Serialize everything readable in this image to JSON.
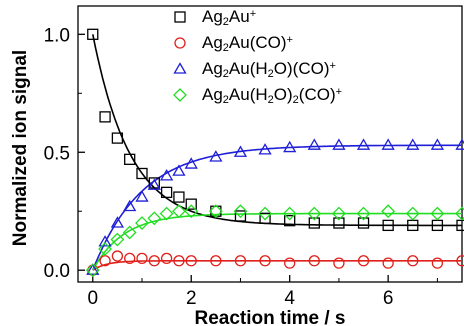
{
  "chart_data": {
    "type": "scatter",
    "xlabel": "Reaction time / s",
    "ylabel": "Normalized ion signal",
    "xlim": [
      -0.3,
      7.5
    ],
    "ylim": [
      -0.05,
      1.12
    ],
    "x_ticks": [
      "0",
      "2",
      "4",
      "6"
    ],
    "y_ticks": [
      "0.0",
      "0.5",
      "1.0"
    ],
    "legend_position": "top-right",
    "grid": false,
    "series": [
      {
        "name": "Ag2Au+",
        "name_parts": [
          [
            "Ag",
            ""
          ],
          [
            "2",
            "sub"
          ],
          [
            "Au",
            ""
          ],
          [
            "+",
            "sup"
          ]
        ],
        "marker": "square",
        "color": "#000000",
        "fit_color": "#000000",
        "fit": {
          "a": 0.81,
          "k": 1.3,
          "c": 0.19
        },
        "x": [
          0,
          0.25,
          0.5,
          0.75,
          1,
          1.25,
          1.5,
          1.75,
          2,
          2.5,
          3,
          3.5,
          4,
          4.5,
          5,
          5.5,
          6,
          6.5,
          7,
          7.5
        ],
        "y": [
          1.0,
          0.65,
          0.56,
          0.47,
          0.41,
          0.37,
          0.33,
          0.31,
          0.28,
          0.25,
          0.23,
          0.22,
          0.21,
          0.2,
          0.2,
          0.2,
          0.19,
          0.19,
          0.19,
          0.19
        ]
      },
      {
        "name": "Ag2Au(CO)+",
        "name_parts": [
          [
            "Ag",
            ""
          ],
          [
            "2",
            "sub"
          ],
          [
            "Au(CO)",
            ""
          ],
          [
            "+",
            "sup"
          ]
        ],
        "marker": "circle",
        "color": "#e0201b",
        "fit_color": "#e0201b",
        "fit": {
          "a": 0.04,
          "k": 3.5,
          "c": 0
        },
        "x": [
          0,
          0.25,
          0.5,
          0.75,
          1,
          1.25,
          1.5,
          1.75,
          2,
          2.5,
          3,
          3.5,
          4,
          4.5,
          5,
          5.5,
          6,
          6.5,
          7,
          7.5
        ],
        "y": [
          0.0,
          0.04,
          0.06,
          0.05,
          0.05,
          0.04,
          0.05,
          0.04,
          0.04,
          0.04,
          0.04,
          0.04,
          0.03,
          0.04,
          0.03,
          0.04,
          0.03,
          0.04,
          0.03,
          0.04
        ]
      },
      {
        "name": "Ag2Au(H2O)(CO)+",
        "name_parts": [
          [
            "Ag",
            ""
          ],
          [
            "2",
            "sub"
          ],
          [
            "Au(H",
            ""
          ],
          [
            "2",
            "sub"
          ],
          [
            "O)(CO)",
            ""
          ],
          [
            "+",
            "sup"
          ]
        ],
        "marker": "triangle",
        "color": "#1f1fd8",
        "fit_color": "#1f1fd8",
        "fit": {
          "a": 0.53,
          "k": 1.0,
          "c": 0
        },
        "x": [
          0,
          0.25,
          0.5,
          0.75,
          1,
          1.25,
          1.5,
          1.75,
          2,
          2.5,
          3,
          3.5,
          4,
          4.5,
          5,
          5.5,
          6,
          6.5,
          7,
          7.5
        ],
        "y": [
          0.0,
          0.12,
          0.2,
          0.27,
          0.31,
          0.36,
          0.4,
          0.42,
          0.45,
          0.48,
          0.5,
          0.51,
          0.52,
          0.53,
          0.53,
          0.53,
          0.53,
          0.53,
          0.53,
          0.53
        ]
      },
      {
        "name": "Ag2Au(H2O)2(CO)+",
        "name_parts": [
          [
            "Ag",
            ""
          ],
          [
            "2",
            "sub"
          ],
          [
            "Au(H",
            ""
          ],
          [
            "2",
            "sub"
          ],
          [
            "O)",
            ""
          ],
          [
            "2",
            "sub"
          ],
          [
            "(CO)",
            ""
          ],
          [
            "+",
            "sup"
          ]
        ],
        "marker": "diamond",
        "color": "#22dd22",
        "fit_color": "#22dd22",
        "fit": {
          "a": 0.24,
          "k": 1.6,
          "c": 0
        },
        "x": [
          0,
          0.25,
          0.5,
          0.75,
          1,
          1.25,
          1.5,
          1.75,
          2,
          2.5,
          3,
          3.5,
          4,
          4.5,
          5,
          5.5,
          6,
          6.5,
          7,
          7.5
        ],
        "y": [
          0.0,
          0.09,
          0.13,
          0.16,
          0.2,
          0.22,
          0.24,
          0.25,
          0.25,
          0.25,
          0.25,
          0.24,
          0.24,
          0.24,
          0.24,
          0.24,
          0.25,
          0.24,
          0.24,
          0.24
        ]
      }
    ]
  }
}
